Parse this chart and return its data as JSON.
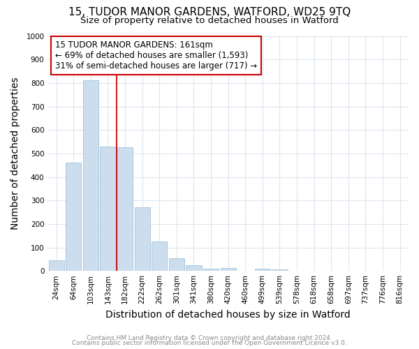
{
  "title": "15, TUDOR MANOR GARDENS, WATFORD, WD25 9TQ",
  "subtitle": "Size of property relative to detached houses in Watford",
  "xlabel": "Distribution of detached houses by size in Watford",
  "ylabel": "Number of detached properties",
  "footnote1": "Contains HM Land Registry data © Crown copyright and database right 2024.",
  "footnote2": "Contains public sector information licensed under the Open Government Licence v3.0.",
  "categories": [
    "24sqm",
    "64sqm",
    "103sqm",
    "143sqm",
    "182sqm",
    "222sqm",
    "262sqm",
    "301sqm",
    "341sqm",
    "380sqm",
    "420sqm",
    "460sqm",
    "499sqm",
    "539sqm",
    "578sqm",
    "618sqm",
    "658sqm",
    "697sqm",
    "737sqm",
    "776sqm",
    "816sqm"
  ],
  "values": [
    45,
    460,
    810,
    530,
    525,
    270,
    125,
    55,
    25,
    10,
    12,
    0,
    10,
    7,
    0,
    0,
    0,
    0,
    0,
    0,
    0
  ],
  "bar_color": "#ccdded",
  "bar_edge_color": "#a8c8e0",
  "vline_x": 3.5,
  "vline_color": "#cc0000",
  "annotation_text": "15 TUDOR MANOR GARDENS: 161sqm\n← 69% of detached houses are smaller (1,593)\n31% of semi-detached houses are larger (717) →",
  "annotation_box_color": "#ffffff",
  "annotation_box_edge_color": "#cc0000",
  "ylim": [
    0,
    1000
  ],
  "yticks": [
    0,
    100,
    200,
    300,
    400,
    500,
    600,
    700,
    800,
    900,
    1000
  ],
  "background_color": "#ffffff",
  "grid_color": "#dde6f0",
  "title_fontsize": 11,
  "subtitle_fontsize": 9.5,
  "axis_label_fontsize": 10,
  "tick_fontsize": 7.5,
  "annotation_fontsize": 8.5,
  "footnote_fontsize": 6.5
}
